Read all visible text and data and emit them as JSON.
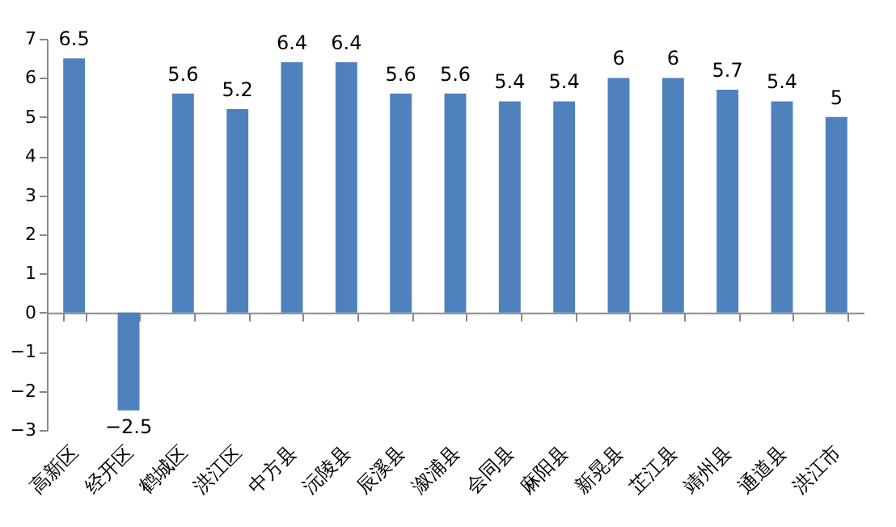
{
  "chart_data": {
    "type": "bar",
    "categories": [
      "高新区",
      "经开区",
      "鹤城区",
      "洪江区",
      "中方县",
      "沅陵县",
      "辰溪县",
      "溆浦县",
      "会同县",
      "麻阳县",
      "新晃县",
      "芷江县",
      "靖州县",
      "通道县",
      "洪江市"
    ],
    "values": [
      6.5,
      -2.5,
      5.6,
      5.2,
      6.4,
      6.4,
      5.6,
      5.6,
      5.4,
      5.4,
      6,
      6,
      5.7,
      5.4,
      5
    ],
    "color": "#4f81bd",
    "ylim": [
      -3,
      7
    ],
    "yticks": [
      -3,
      -2,
      -1,
      0,
      1,
      2,
      3,
      4,
      5,
      6,
      7
    ],
    "data_labels": true
  }
}
